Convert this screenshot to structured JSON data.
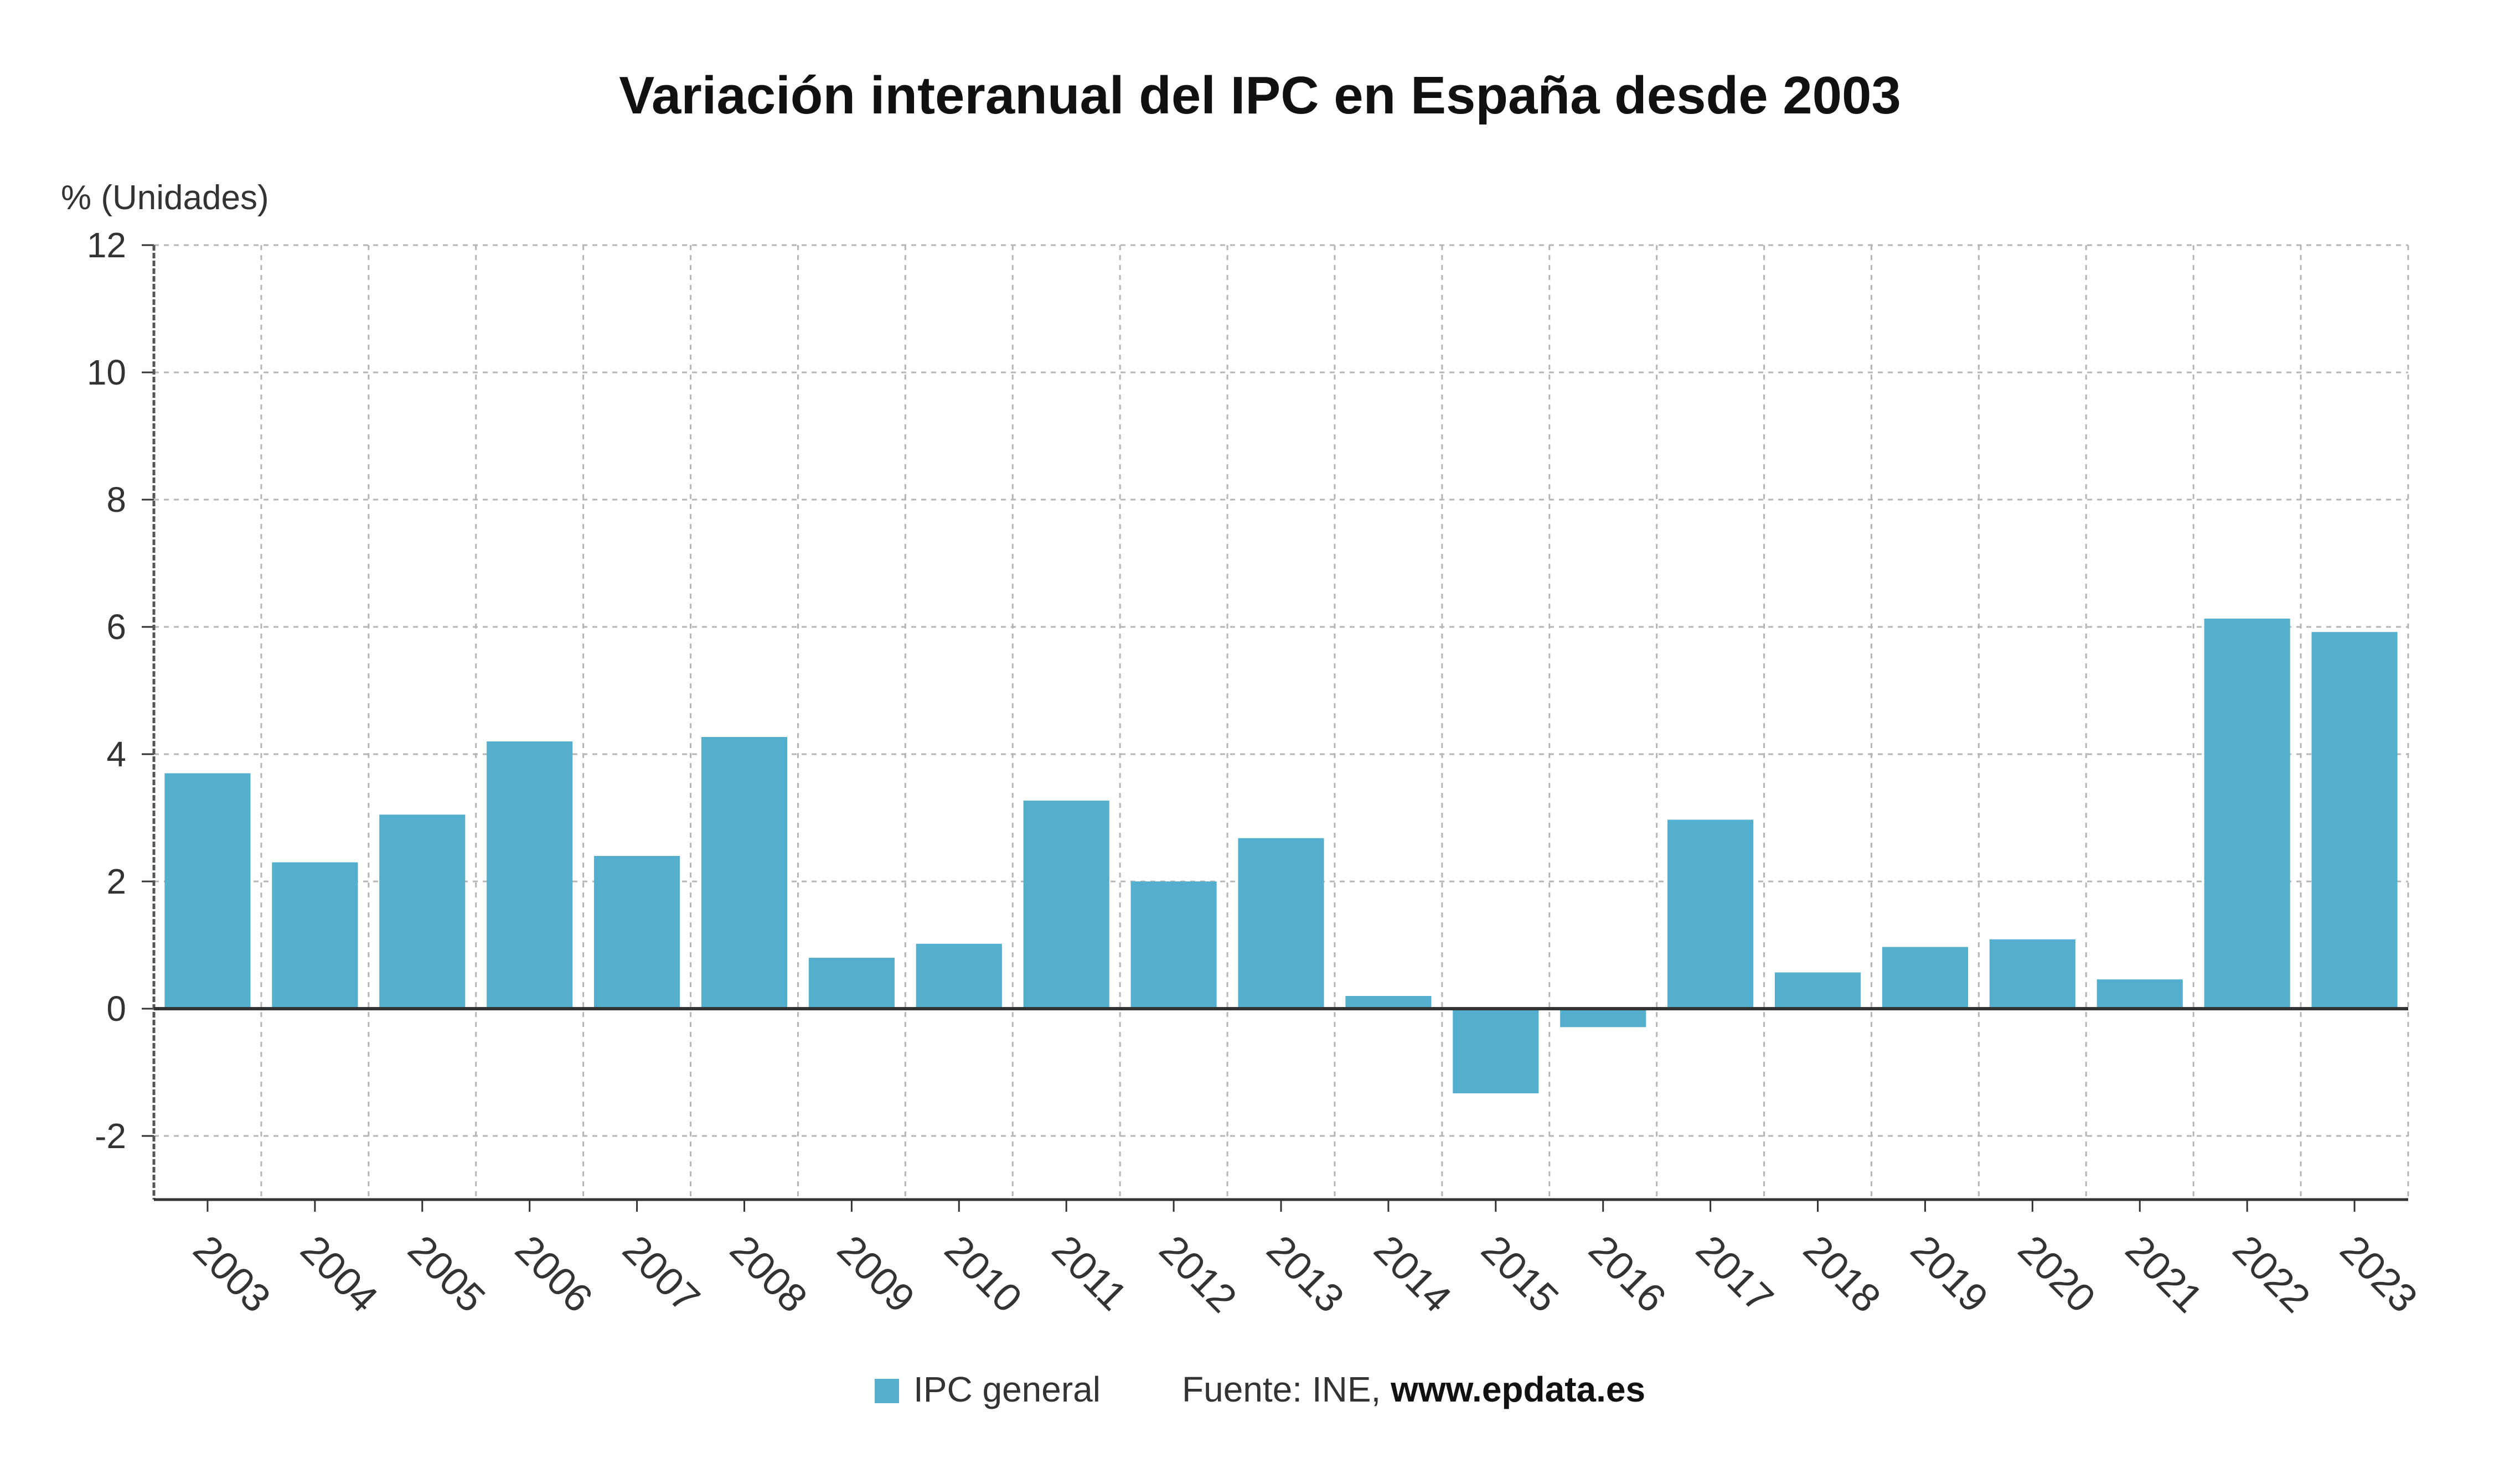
{
  "chart_data": {
    "type": "bar",
    "title": "Variación interanual del IPC en España desde 2003",
    "ylabel": "% (Unidades)",
    "xlabel": "",
    "ylim": [
      -3,
      12
    ],
    "yticks": [
      -2,
      0,
      2,
      4,
      6,
      8,
      10,
      12
    ],
    "grid": true,
    "legend_position": "bottom-center",
    "categories": [
      "2003",
      "2004",
      "2005",
      "2006",
      "2007",
      "2008",
      "2009",
      "2010",
      "2011",
      "2012",
      "2013",
      "2014",
      "2015",
      "2016",
      "2017",
      "2018",
      "2019",
      "2020",
      "2021",
      "2022",
      "2023"
    ],
    "series": [
      {
        "name": "IPC general",
        "color": "#54aecd",
        "values": [
          3.7,
          2.3,
          3.05,
          4.2,
          2.4,
          4.27,
          0.8,
          1.02,
          3.27,
          2.0,
          2.68,
          0.2,
          -1.33,
          -0.29,
          2.97,
          0.57,
          0.97,
          1.09,
          0.46,
          6.13,
          5.92
        ]
      }
    ]
  },
  "legend": {
    "label": "IPC general",
    "source_prefix": "Fuente: INE, ",
    "source_site": "www.epdata.es"
  }
}
